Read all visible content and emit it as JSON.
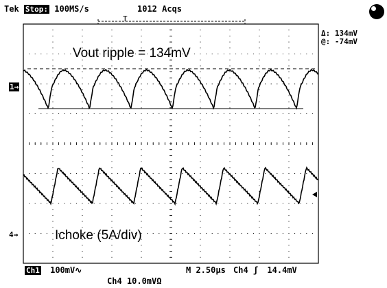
{
  "header": {
    "brand": "Tek",
    "run_state": "Stop:",
    "sample_rate": "100MS/s",
    "acquisitions": "1012 Acqs",
    "trigger_marker": "T"
  },
  "readout": {
    "delta": "Δ: 134mV",
    "at": "@: -74mV"
  },
  "annotations": {
    "vout": "Vout ripple = 134mV",
    "ichoke": "Ichoke (5A/div)"
  },
  "markers": {
    "ch1": "1→",
    "ch4": "4→"
  },
  "footer": {
    "ch1_label": "Ch1",
    "ch1_scale": "100mV∿",
    "timebase": "M 2.50µs",
    "trigger_source": "Ch4",
    "trigger_slope": "ʃ",
    "trigger_level": "14.4mV",
    "ch4_scale": "Ch4  10.0mVΩ"
  },
  "colors": {
    "trace": "#000000",
    "background": "#ffffff"
  }
}
